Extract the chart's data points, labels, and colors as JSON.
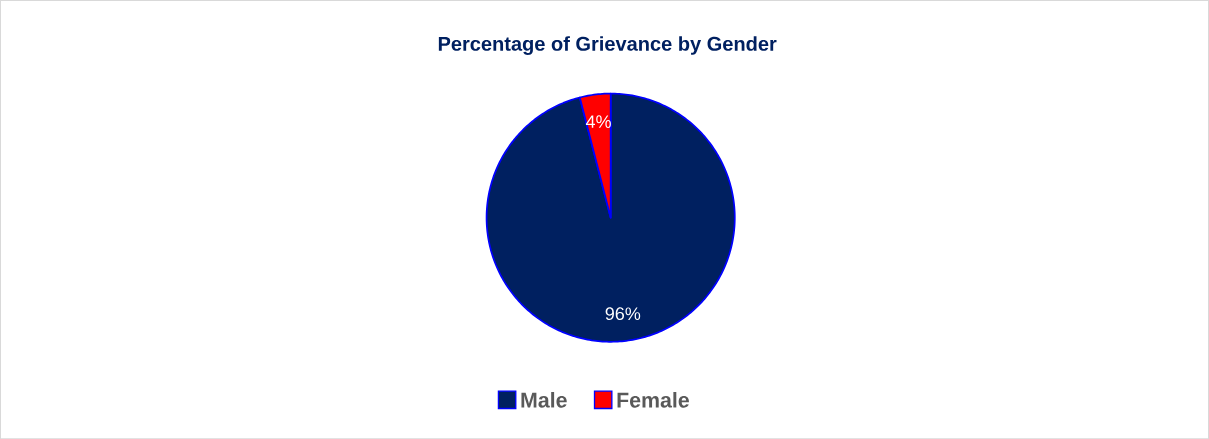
{
  "chart_data": {
    "type": "pie",
    "title": "Percentage of Grievance by Gender",
    "categories": [
      "Male",
      "Female"
    ],
    "values": [
      96,
      4
    ],
    "colors": [
      "#002060",
      "#ff0000"
    ],
    "value_labels": [
      "96%",
      "4%"
    ],
    "legend": "bottom"
  }
}
